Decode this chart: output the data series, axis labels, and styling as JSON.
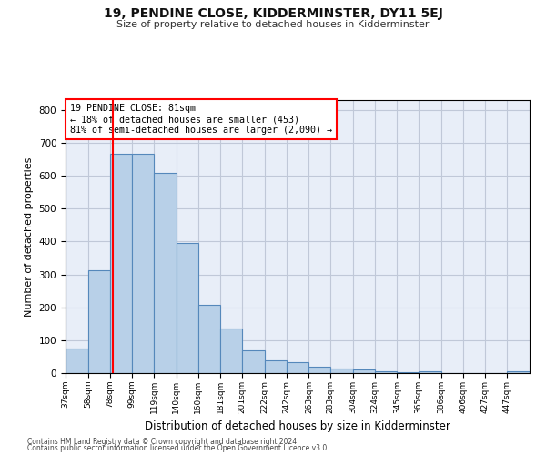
{
  "title": "19, PENDINE CLOSE, KIDDERMINSTER, DY11 5EJ",
  "subtitle": "Size of property relative to detached houses in Kidderminster",
  "xlabel": "Distribution of detached houses by size in Kidderminster",
  "ylabel": "Number of detached properties",
  "footnote1": "Contains HM Land Registry data © Crown copyright and database right 2024.",
  "footnote2": "Contains public sector information licensed under the Open Government Licence v3.0.",
  "annotation_line1": "19 PENDINE CLOSE: 81sqm",
  "annotation_line2": "← 18% of detached houses are smaller (453)",
  "annotation_line3": "81% of semi-detached houses are larger (2,090) →",
  "bar_color": "#b8d0e8",
  "bar_edge_color": "#5588bb",
  "vline_color": "red",
  "vline_x": 81,
  "categories": [
    "37sqm",
    "58sqm",
    "78sqm",
    "99sqm",
    "119sqm",
    "140sqm",
    "160sqm",
    "181sqm",
    "201sqm",
    "222sqm",
    "242sqm",
    "263sqm",
    "283sqm",
    "304sqm",
    "324sqm",
    "345sqm",
    "365sqm",
    "386sqm",
    "406sqm",
    "427sqm",
    "447sqm"
  ],
  "bin_edges": [
    37,
    58,
    78,
    99,
    119,
    140,
    160,
    181,
    201,
    222,
    242,
    263,
    283,
    304,
    324,
    345,
    365,
    386,
    406,
    427,
    447,
    468
  ],
  "values": [
    75,
    312,
    667,
    667,
    610,
    397,
    207,
    135,
    68,
    40,
    32,
    18,
    13,
    10,
    5,
    4,
    5,
    0,
    0,
    0,
    5
  ],
  "ylim": [
    0,
    830
  ],
  "yticks": [
    0,
    100,
    200,
    300,
    400,
    500,
    600,
    700,
    800
  ],
  "background_color": "#ffffff",
  "plot_bg_color": "#e8eef8",
  "grid_color": "#c0c8d8"
}
